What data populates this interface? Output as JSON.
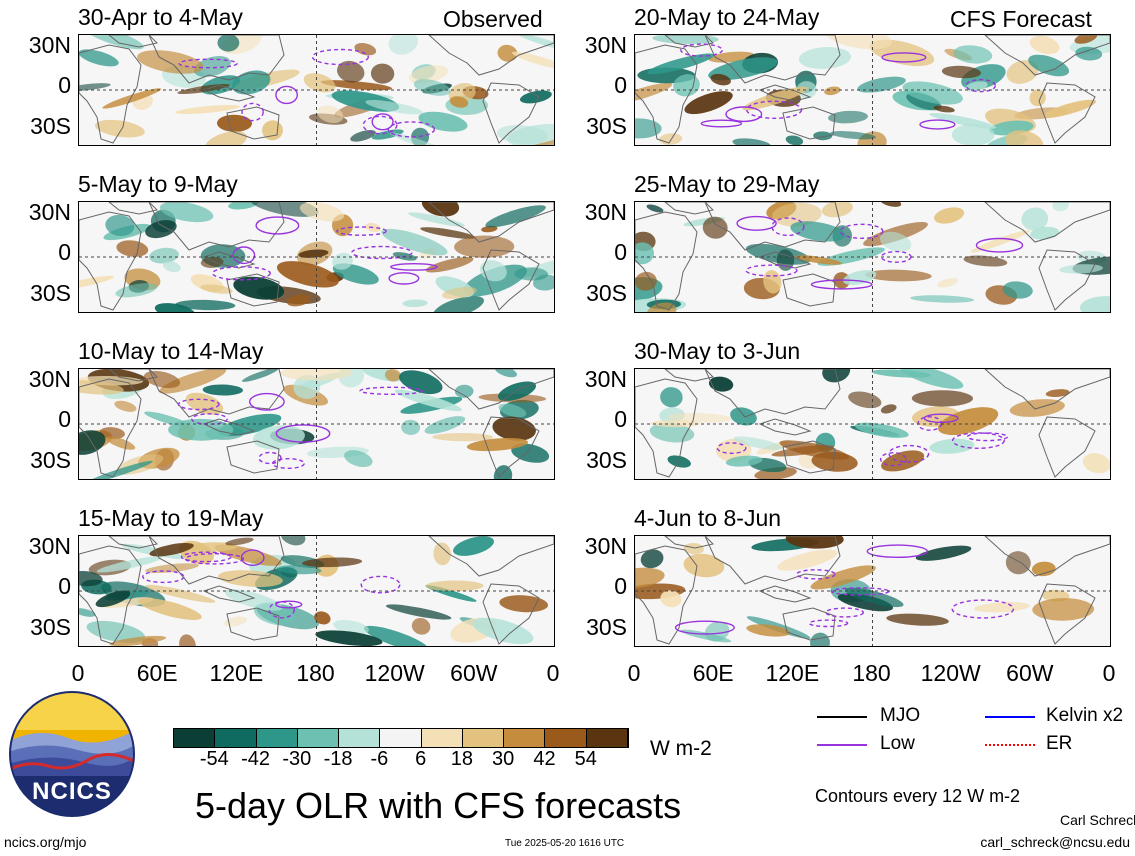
{
  "titles": {
    "main": "5-day OLR with CFS forecasts",
    "observed": "Observed",
    "forecast": "CFS Forecast"
  },
  "panels": [
    {
      "period": "30-Apr to 4-May",
      "col": 0,
      "row": 0
    },
    {
      "period": "5-May to 9-May",
      "col": 0,
      "row": 1
    },
    {
      "period": "10-May to 14-May",
      "col": 0,
      "row": 2
    },
    {
      "period": "15-May to 19-May",
      "col": 0,
      "row": 3
    },
    {
      "period": "20-May to 24-May",
      "col": 1,
      "row": 0
    },
    {
      "period": "25-May to 29-May",
      "col": 1,
      "row": 1
    },
    {
      "period": "30-May to 3-Jun",
      "col": 1,
      "row": 2
    },
    {
      "period": "4-Jun to 8-Jun",
      "col": 1,
      "row": 3
    }
  ],
  "lat_labels": [
    "30N",
    "0",
    "30S"
  ],
  "lon_labels": [
    "0",
    "60E",
    "120E",
    "180",
    "120W",
    "60W",
    "0"
  ],
  "colorbar": {
    "labels": [
      "-54",
      "-42",
      "-30",
      "-18",
      "-6",
      "6",
      "18",
      "30",
      "42",
      "54"
    ],
    "colors": [
      "#0b3f36",
      "#0f6b5f",
      "#2f978a",
      "#6cc1b2",
      "#b4e2d8",
      "#f4f4f4",
      "#f4e0b7",
      "#e3c27f",
      "#c48c3c",
      "#9a5a1c",
      "#5a3510"
    ],
    "units": "W m-2"
  },
  "legend": {
    "mjo": "MJO",
    "kelvin": "Kelvin x2",
    "low": "Low",
    "er": "ER",
    "contours": "Contours every 12 W m-2",
    "mjo_color": "#000000",
    "kelvin_color": "#0000ff",
    "low_color": "#9933dd",
    "er_color": "#ff0000"
  },
  "logo": {
    "text": "NCICS"
  },
  "footer": {
    "url": "ncics.org/mjo",
    "timestamp": "Tue 2025-05-20 1616 UTC",
    "author": "Carl Schreck",
    "email": "carl_schreck@ncsu.edu"
  }
}
